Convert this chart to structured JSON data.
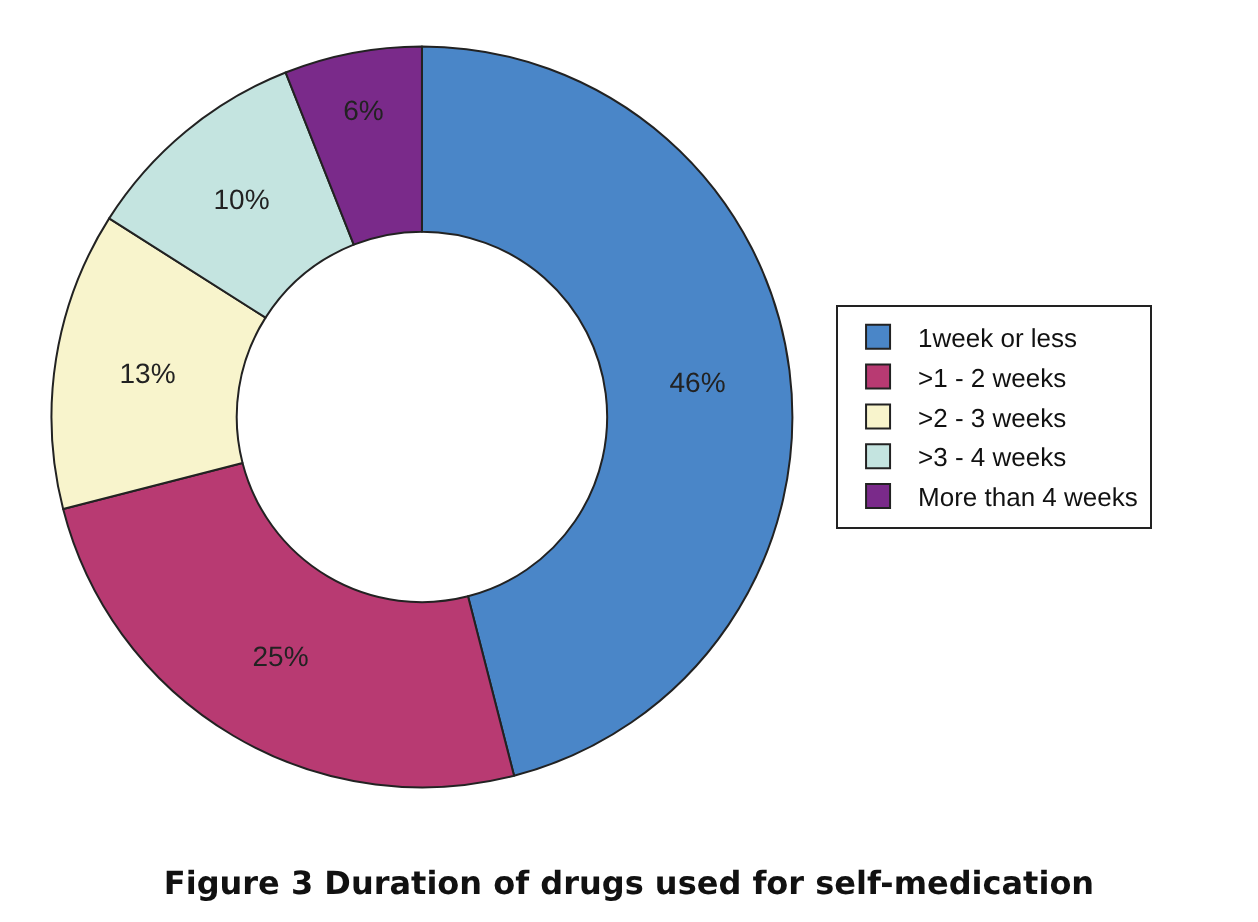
{
  "chart_data": {
    "type": "donut",
    "title": "Figure 3 Duration of drugs used for self-medication",
    "categories": [
      "1week or less",
      ">1 - 2 weeks",
      ">2 - 3 weeks",
      ">3 - 4 weeks",
      "More than 4 weeks"
    ],
    "values": [
      46,
      25,
      13,
      10,
      6
    ],
    "value_labels": [
      "46%",
      "25%",
      "13%",
      "10%",
      "6%"
    ],
    "colors": [
      "#4a86c8",
      "#b83a72",
      "#f8f4cc",
      "#c4e4e0",
      "#7a2a8a"
    ],
    "legend": "right"
  }
}
